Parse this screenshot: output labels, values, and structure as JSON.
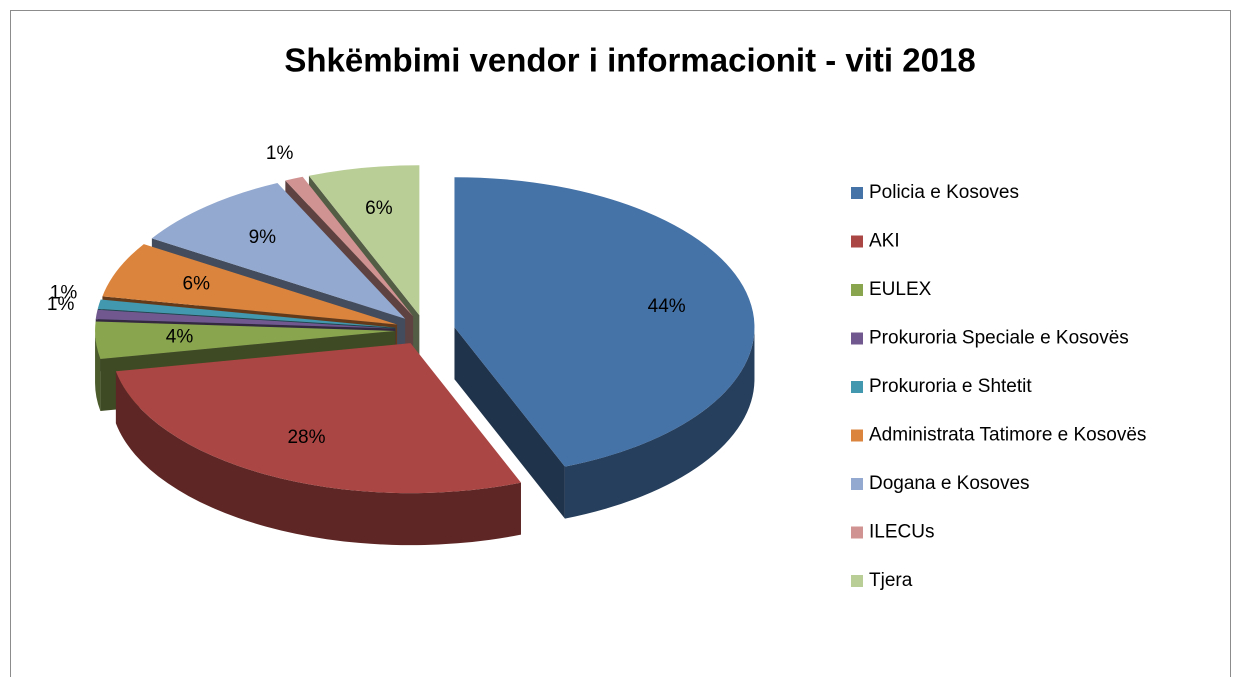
{
  "chart_data": {
    "type": "pie",
    "title": "Shkëmbimi vendor i informacionit  - viti 2018",
    "categories": [
      "Policia e Kosoves",
      "AKI",
      "EULEX",
      "Prokuroria Speciale e Kosovës",
      "Prokuroria e Shtetit",
      "Administrata Tatimore e Kosovës",
      "Dogana e Kosoves",
      "ILECUs",
      "Tjera"
    ],
    "values": [
      44,
      28,
      4,
      1,
      1,
      6,
      9,
      1,
      6
    ],
    "value_labels": [
      "44%",
      "28%",
      "4%",
      "1%",
      "1%",
      "6%",
      "9%",
      "1%",
      "6%"
    ],
    "colors": [
      "#4572a7",
      "#aa4643",
      "#89a54e",
      "#71588f",
      "#4198af",
      "#db843d",
      "#93a9cf",
      "#d19392",
      "#b9cd96"
    ],
    "legend": "right"
  }
}
